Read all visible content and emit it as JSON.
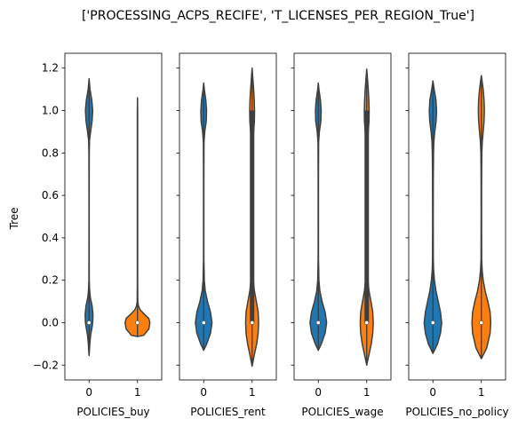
{
  "chart_data": {
    "type": "violin",
    "title": "['PROCESSING_ACPS_RECIFE', 'T_LICENSES_PER_REGION_True']",
    "ylabel": "Tree",
    "ylim": [
      -0.27,
      1.27
    ],
    "yticks": [
      -0.2,
      0.0,
      0.2,
      0.4,
      0.6,
      0.8,
      1.0,
      1.2
    ],
    "ytick_labels": [
      "−0.2",
      "0.0",
      "0.2",
      "0.4",
      "0.6",
      "0.8",
      "1.0",
      "1.2"
    ],
    "categories": [
      "0",
      "1"
    ],
    "colors": {
      "0": "#1f77b4",
      "1": "#ff7f0e"
    },
    "grid": false,
    "panels": [
      {
        "xlabel": "POLICIES_buy",
        "violins": [
          {
            "category": "0",
            "color": "#1f77b4",
            "median": 0.0,
            "q1": 0.0,
            "q3": 0.0,
            "min": -0.155,
            "max": 1.15,
            "profile": [
              [
                -0.155,
                0
              ],
              [
                -0.1,
                0.05
              ],
              [
                -0.06,
                0.1
              ],
              [
                -0.02,
                0.2
              ],
              [
                0.0,
                0.24
              ],
              [
                0.04,
                0.26
              ],
              [
                0.08,
                0.2
              ],
              [
                0.12,
                0.08
              ],
              [
                0.16,
                0.03
              ],
              [
                0.2,
                0.012
              ],
              [
                0.3,
                0.008
              ],
              [
                0.5,
                0.006
              ],
              [
                0.7,
                0.008
              ],
              [
                0.8,
                0.012
              ],
              [
                0.86,
                0.03
              ],
              [
                0.9,
                0.1
              ],
              [
                0.95,
                0.2
              ],
              [
                1.0,
                0.24
              ],
              [
                1.05,
                0.18
              ],
              [
                1.1,
                0.06
              ],
              [
                1.15,
                0
              ]
            ]
          },
          {
            "category": "1",
            "color": "#ff7f0e",
            "median": 0.0,
            "q1": 0.0,
            "q3": 0.0,
            "min": -0.065,
            "max": 1.06,
            "profile": [
              [
                -0.065,
                0
              ],
              [
                -0.06,
                0.4
              ],
              [
                -0.03,
                0.75
              ],
              [
                0.0,
                0.82
              ],
              [
                0.02,
                0.75
              ],
              [
                0.04,
                0.45
              ],
              [
                0.06,
                0.18
              ],
              [
                0.08,
                0.06
              ],
              [
                0.1,
                0.02
              ],
              [
                0.2,
                0.01
              ],
              [
                0.5,
                0.01
              ],
              [
                0.9,
                0.01
              ],
              [
                1.0,
                0.01
              ],
              [
                1.06,
                0
              ]
            ]
          }
        ]
      },
      {
        "xlabel": "POLICIES_rent",
        "violins": [
          {
            "category": "0",
            "color": "#1f77b4",
            "median": 0.0,
            "q1": 0.0,
            "q3": 0.0,
            "min": -0.13,
            "max": 1.13,
            "profile": [
              [
                -0.13,
                0
              ],
              [
                -0.1,
                0.2
              ],
              [
                -0.05,
                0.45
              ],
              [
                0.0,
                0.55
              ],
              [
                0.05,
                0.45
              ],
              [
                0.1,
                0.25
              ],
              [
                0.15,
                0.1
              ],
              [
                0.2,
                0.04
              ],
              [
                0.3,
                0.012
              ],
              [
                0.5,
                0.01
              ],
              [
                0.7,
                0.012
              ],
              [
                0.85,
                0.02
              ],
              [
                0.9,
                0.07
              ],
              [
                0.95,
                0.17
              ],
              [
                1.0,
                0.19
              ],
              [
                1.05,
                0.14
              ],
              [
                1.1,
                0.04
              ],
              [
                1.13,
                0
              ]
            ]
          },
          {
            "category": "1",
            "color": "#ff7f0e",
            "median": 0.0,
            "q1": 0.0,
            "q3": 1.0,
            "min": -0.205,
            "max": 1.2,
            "profile": [
              [
                -0.205,
                0
              ],
              [
                -0.15,
                0.15
              ],
              [
                -0.1,
                0.3
              ],
              [
                -0.05,
                0.4
              ],
              [
                0.0,
                0.43
              ],
              [
                0.05,
                0.4
              ],
              [
                0.1,
                0.28
              ],
              [
                0.15,
                0.15
              ],
              [
                0.2,
                0.08
              ],
              [
                0.25,
                0.04
              ],
              [
                0.3,
                0.022
              ],
              [
                0.5,
                0.02
              ],
              [
                0.7,
                0.022
              ],
              [
                0.85,
                0.04
              ],
              [
                0.9,
                0.1
              ],
              [
                0.95,
                0.15
              ],
              [
                1.0,
                0.16
              ],
              [
                1.05,
                0.14
              ],
              [
                1.1,
                0.1
              ],
              [
                1.15,
                0.05
              ],
              [
                1.2,
                0
              ]
            ]
          }
        ]
      },
      {
        "xlabel": "POLICIES_wage",
        "violins": [
          {
            "category": "0",
            "color": "#1f77b4",
            "median": 0.0,
            "q1": 0.0,
            "q3": 0.0,
            "min": -0.13,
            "max": 1.13,
            "profile": [
              [
                -0.13,
                0
              ],
              [
                -0.1,
                0.2
              ],
              [
                -0.05,
                0.45
              ],
              [
                0.0,
                0.55
              ],
              [
                0.05,
                0.45
              ],
              [
                0.1,
                0.25
              ],
              [
                0.15,
                0.1
              ],
              [
                0.2,
                0.04
              ],
              [
                0.3,
                0.012
              ],
              [
                0.5,
                0.01
              ],
              [
                0.7,
                0.012
              ],
              [
                0.85,
                0.02
              ],
              [
                0.9,
                0.07
              ],
              [
                0.95,
                0.17
              ],
              [
                1.0,
                0.19
              ],
              [
                1.05,
                0.14
              ],
              [
                1.1,
                0.04
              ],
              [
                1.13,
                0
              ]
            ]
          },
          {
            "category": "1",
            "color": "#ff7f0e",
            "median": 0.0,
            "q1": 0.0,
            "q3": 1.0,
            "min": -0.2,
            "max": 1.195,
            "profile": [
              [
                -0.2,
                0
              ],
              [
                -0.15,
                0.15
              ],
              [
                -0.1,
                0.3
              ],
              [
                -0.05,
                0.4
              ],
              [
                0.0,
                0.43
              ],
              [
                0.05,
                0.4
              ],
              [
                0.1,
                0.28
              ],
              [
                0.15,
                0.15
              ],
              [
                0.2,
                0.08
              ],
              [
                0.25,
                0.04
              ],
              [
                0.3,
                0.022
              ],
              [
                0.5,
                0.02
              ],
              [
                0.7,
                0.022
              ],
              [
                0.85,
                0.04
              ],
              [
                0.9,
                0.1
              ],
              [
                0.95,
                0.15
              ],
              [
                1.0,
                0.16
              ],
              [
                1.05,
                0.14
              ],
              [
                1.1,
                0.1
              ],
              [
                1.15,
                0.05
              ],
              [
                1.195,
                0
              ]
            ]
          }
        ]
      },
      {
        "xlabel": "POLICIES_no_policy",
        "violins": [
          {
            "category": "0",
            "color": "#1f77b4",
            "median": 0.0,
            "q1": 0.0,
            "q3": 0.0,
            "min": -0.145,
            "max": 1.14,
            "profile": [
              [
                -0.145,
                0
              ],
              [
                -0.1,
                0.3
              ],
              [
                -0.05,
                0.5
              ],
              [
                0.0,
                0.58
              ],
              [
                0.05,
                0.5
              ],
              [
                0.1,
                0.35
              ],
              [
                0.15,
                0.2
              ],
              [
                0.2,
                0.1
              ],
              [
                0.25,
                0.045
              ],
              [
                0.3,
                0.025
              ],
              [
                0.5,
                0.02
              ],
              [
                0.7,
                0.025
              ],
              [
                0.8,
                0.04
              ],
              [
                0.85,
                0.06
              ],
              [
                0.9,
                0.12
              ],
              [
                0.95,
                0.21
              ],
              [
                1.0,
                0.24
              ],
              [
                1.05,
                0.2
              ],
              [
                1.1,
                0.08
              ],
              [
                1.14,
                0
              ]
            ]
          },
          {
            "category": "1",
            "color": "#ff7f0e",
            "median": 0.0,
            "q1": 0.0,
            "q3": 0.0,
            "min": -0.17,
            "max": 1.165,
            "profile": [
              [
                -0.17,
                0
              ],
              [
                -0.12,
                0.35
              ],
              [
                -0.05,
                0.58
              ],
              [
                0.0,
                0.62
              ],
              [
                0.05,
                0.58
              ],
              [
                0.1,
                0.43
              ],
              [
                0.15,
                0.25
              ],
              [
                0.2,
                0.12
              ],
              [
                0.25,
                0.05
              ],
              [
                0.3,
                0.02
              ],
              [
                0.5,
                0.015
              ],
              [
                0.7,
                0.018
              ],
              [
                0.8,
                0.03
              ],
              [
                0.85,
                0.06
              ],
              [
                0.9,
                0.12
              ],
              [
                0.95,
                0.18
              ],
              [
                1.0,
                0.2
              ],
              [
                1.05,
                0.18
              ],
              [
                1.1,
                0.12
              ],
              [
                1.165,
                0
              ]
            ]
          }
        ]
      }
    ]
  }
}
